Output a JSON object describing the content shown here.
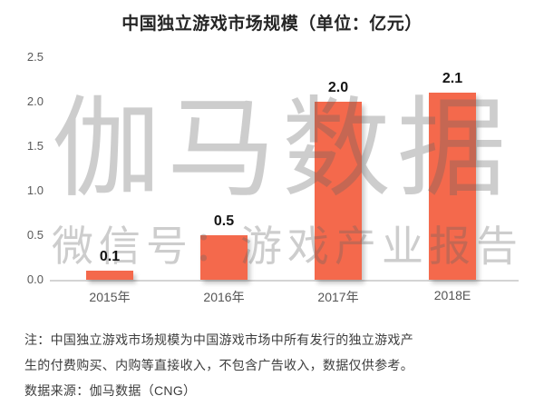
{
  "title": "中国独立游戏市场规模（单位：亿元）",
  "watermark": {
    "brand": "伽马数据",
    "wechat": "微信号：游戏产业报告"
  },
  "chart_data": {
    "type": "bar",
    "categories": [
      "2015年",
      "2016年",
      "2017年",
      "2018E"
    ],
    "values": [
      0.1,
      0.5,
      2.0,
      2.1
    ],
    "value_labels": [
      "0.1",
      "0.5",
      "2.0",
      "2.1"
    ],
    "title": "中国独立游戏市场规模（单位：亿元）",
    "xlabel": "",
    "ylabel": "",
    "ylim": [
      0,
      2.5
    ],
    "yticks": [
      "0.0",
      "0.5",
      "1.0",
      "1.5",
      "2.0",
      "2.5"
    ],
    "grid": false,
    "legend": false,
    "bar_color": "#F4694C"
  },
  "notes": {
    "line1": "注：中国独立游戏市场规模为中国游戏市场中所有发行的独立游戏产",
    "line2": "生的付费购买、内购等直接收入，不包含广告收入，数据仅供参考。",
    "source": "数据来源：伽马数据（CNG）"
  },
  "colors": {
    "bar": "#F4694C",
    "axis_line": "#D4D4D4",
    "tick_text": "#595959",
    "title_text": "#252525",
    "note_text": "#3D3D3D",
    "watermark": "#808080"
  }
}
